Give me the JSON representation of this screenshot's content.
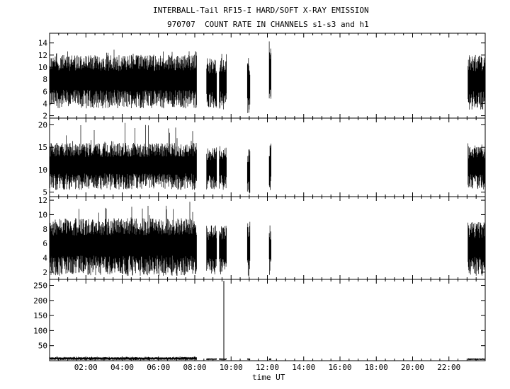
{
  "title_line1": "INTERBALL-Tail RF15-I HARD/SOFT X-RAY EMISSION",
  "title_line2": "970707  COUNT RATE IN CHANNELS s1-s3 and h1",
  "xlabel": "time UT",
  "chart_data": {
    "type": "line",
    "x_unit": "hours UT",
    "xlim": [
      0,
      24
    ],
    "x_ticks": [
      2,
      4,
      6,
      8,
      10,
      12,
      14,
      16,
      18,
      20,
      22
    ],
    "x_tick_labels": [
      "02:00",
      "04:00",
      "06:00",
      "08:00",
      "10:00",
      "12:00",
      "14:00",
      "16:00",
      "18:00",
      "20:00",
      "22:00"
    ],
    "panels": [
      {
        "name": "s1",
        "ylim": [
          1.6,
          15.6
        ],
        "y_ticks": [
          2,
          4,
          6,
          8,
          10,
          12,
          14
        ],
        "segments": [
          {
            "x": [
              0.0,
              8.1
            ],
            "range": [
              3.2,
              12.0
            ],
            "spike": 13.0
          },
          {
            "x": [
              8.65,
              9.2
            ],
            "range": [
              3.0,
              11.5
            ],
            "spike": 12.0
          },
          {
            "x": [
              9.35,
              9.75
            ],
            "range": [
              3.0,
              11.5
            ],
            "spike": 12.5
          },
          {
            "x": [
              10.9,
              11.05
            ],
            "range": [
              2.2,
              11.5
            ],
            "spike": 11.5
          },
          {
            "x": [
              12.1,
              12.2
            ],
            "range": [
              3.0,
              14.5
            ],
            "spike": 14.5
          },
          {
            "x": [
              23.05,
              24.0
            ],
            "range": [
              3.0,
              12.0
            ],
            "spike": 12.0
          }
        ]
      },
      {
        "name": "s2",
        "ylim": [
          4.0,
          21.5
        ],
        "y_ticks": [
          5,
          10,
          15,
          20
        ],
        "segments": [
          {
            "x": [
              0.0,
              8.1
            ],
            "range": [
              5.5,
              16.0
            ],
            "spike": 20.5
          },
          {
            "x": [
              8.65,
              9.2
            ],
            "range": [
              5.5,
              15.0
            ],
            "spike": 16.0
          },
          {
            "x": [
              9.35,
              9.75
            ],
            "range": [
              5.5,
              15.0
            ],
            "spike": 15.5
          },
          {
            "x": [
              10.9,
              11.05
            ],
            "range": [
              4.7,
              14.5
            ],
            "spike": 14.5
          },
          {
            "x": [
              12.1,
              12.2
            ],
            "range": [
              5.0,
              16.0
            ],
            "spike": 16.0
          },
          {
            "x": [
              23.05,
              24.0
            ],
            "range": [
              5.5,
              15.5
            ],
            "spike": 16.0
          }
        ]
      },
      {
        "name": "s3",
        "ylim": [
          1.0,
          12.5
        ],
        "y_ticks": [
          2,
          4,
          6,
          8,
          10,
          12
        ],
        "segments": [
          {
            "x": [
              0.0,
              8.1
            ],
            "range": [
              1.5,
              9.5
            ],
            "spike": 12.0
          },
          {
            "x": [
              8.65,
              9.2
            ],
            "range": [
              1.5,
              8.5
            ],
            "spike": 8.5
          },
          {
            "x": [
              9.35,
              9.75
            ],
            "range": [
              1.5,
              8.5
            ],
            "spike": 8.5
          },
          {
            "x": [
              10.9,
              11.05
            ],
            "range": [
              1.3,
              9.0
            ],
            "spike": 9.0
          },
          {
            "x": [
              12.1,
              12.2
            ],
            "range": [
              1.5,
              8.5
            ],
            "spike": 8.5
          },
          {
            "x": [
              23.05,
              24.0
            ],
            "range": [
              1.5,
              9.0
            ],
            "spike": 9.0
          }
        ]
      },
      {
        "name": "h1",
        "ylim": [
          0,
          270
        ],
        "y_ticks": [
          50,
          100,
          150,
          200,
          250
        ],
        "segments": [
          {
            "x": [
              0.0,
              8.1
            ],
            "range": [
              2,
              12
            ],
            "spike": 14
          },
          {
            "x": [
              8.65,
              9.2
            ],
            "range": [
              2,
              8
            ],
            "spike": 8
          },
          {
            "x": [
              9.35,
              9.75
            ],
            "range": [
              2,
              8
            ],
            "spike": 8
          },
          {
            "x": [
              10.9,
              11.05
            ],
            "range": [
              2,
              8
            ],
            "spike": 8
          },
          {
            "x": [
              12.1,
              12.2
            ],
            "range": [
              2,
              8
            ],
            "spike": 8
          },
          {
            "x": [
              23.05,
              24.0
            ],
            "range": [
              2,
              8
            ],
            "spike": 8
          }
        ],
        "peak": {
          "x": 9.6,
          "y": 265
        }
      }
    ]
  }
}
